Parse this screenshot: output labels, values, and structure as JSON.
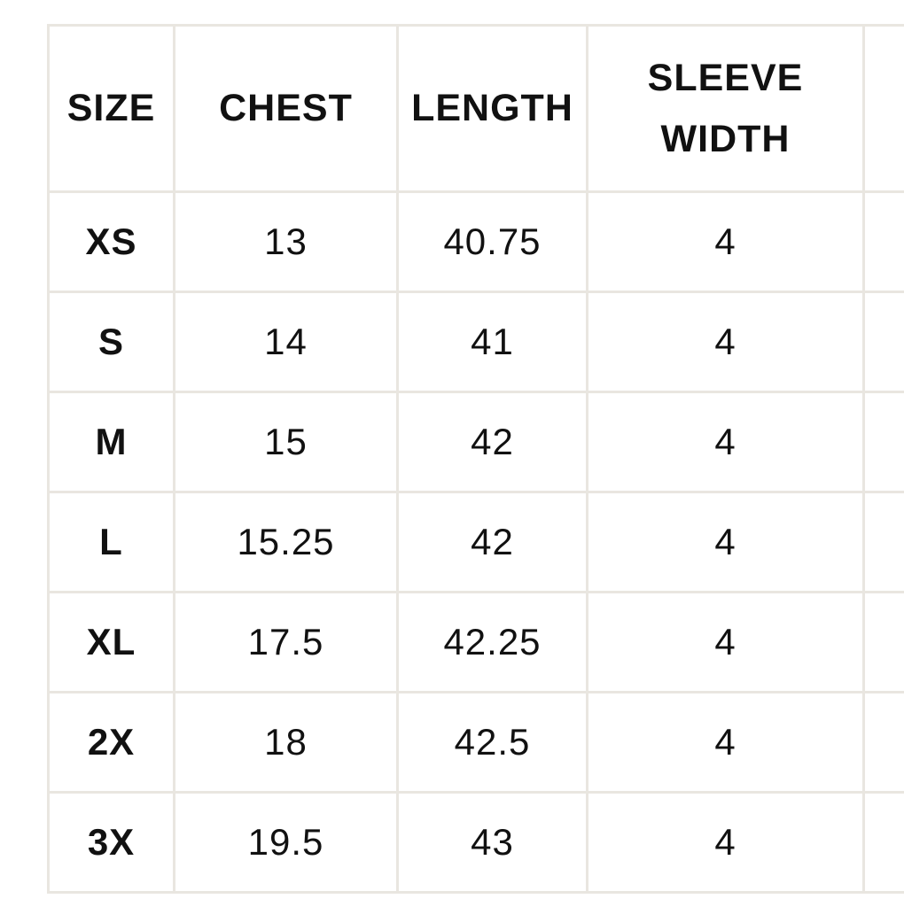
{
  "colors": {
    "background": "#ffffff",
    "grid_border": "#e9e6e0",
    "text": "#111111"
  },
  "size_chart": {
    "columns": [
      {
        "label": "SIZE"
      },
      {
        "label": "CHEST"
      },
      {
        "label": "LENGTH"
      },
      {
        "label": "SLEEVE WIDTH"
      },
      {
        "label": ""
      }
    ],
    "rows": [
      {
        "size": "XS",
        "chest": "13",
        "length": "40.75",
        "sleeve_width": "4",
        "extra": ""
      },
      {
        "size": "S",
        "chest": "14",
        "length": "41",
        "sleeve_width": "4",
        "extra": ""
      },
      {
        "size": "M",
        "chest": "15",
        "length": "42",
        "sleeve_width": "4",
        "extra": ""
      },
      {
        "size": "L",
        "chest": "15.25",
        "length": "42",
        "sleeve_width": "4",
        "extra": ""
      },
      {
        "size": "XL",
        "chest": "17.5",
        "length": "42.25",
        "sleeve_width": "4",
        "extra": ""
      },
      {
        "size": "2X",
        "chest": "18",
        "length": "42.5",
        "sleeve_width": "4",
        "extra": ""
      },
      {
        "size": "3X",
        "chest": "19.5",
        "length": "43",
        "sleeve_width": "4",
        "extra": ""
      }
    ]
  }
}
